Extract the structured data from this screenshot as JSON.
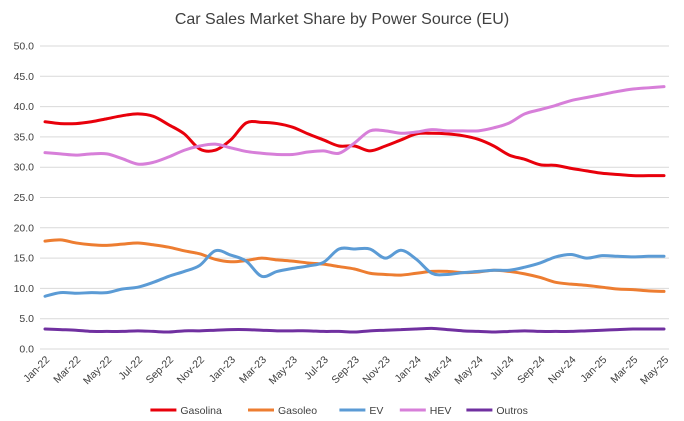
{
  "chart_data": {
    "type": "line",
    "title": "Car Sales Market Share by Power Source (EU)",
    "xlabel": "",
    "ylabel": "",
    "ylim": [
      0,
      50
    ],
    "yticks": [
      "0.0",
      "5.0",
      "10.0",
      "15.0",
      "20.0",
      "25.0",
      "30.0",
      "35.0",
      "40.0",
      "45.0",
      "50.0"
    ],
    "grid": true,
    "legend_position": "bottom",
    "categories": [
      "Jan-22",
      "Feb-22",
      "Mar-22",
      "Apr-22",
      "May-22",
      "Jun-22",
      "Jul-22",
      "Aug-22",
      "Sep-22",
      "Oct-22",
      "Nov-22",
      "Dec-22",
      "Jan-23",
      "Feb-23",
      "Mar-23",
      "Apr-23",
      "May-23",
      "Jun-23",
      "Jul-23",
      "Aug-23",
      "Sep-23",
      "Oct-23",
      "Nov-23",
      "Dec-23",
      "Jan-24",
      "Feb-24",
      "Mar-24",
      "Apr-24",
      "May-24",
      "Jun-24",
      "Jul-24",
      "Aug-24",
      "Sep-24",
      "Oct-24",
      "Nov-24",
      "Dec-24",
      "Jan-25",
      "Feb-25",
      "Mar-25",
      "Apr-25",
      "May-25"
    ],
    "xtick_labels": [
      "Jan-22",
      "Mar-22",
      "May-22",
      "Jul-22",
      "Sep-22",
      "Nov-22",
      "Jan-23",
      "Mar-23",
      "May-23",
      "Jul-23",
      "Sep-23",
      "Nov-23",
      "Jan-24",
      "Mar-24",
      "May-24",
      "Jul-24",
      "Sep-24",
      "Nov-24",
      "Jan-25",
      "Mar-25",
      "May-25"
    ],
    "series": [
      {
        "name": "Gasolina",
        "color": "#e8000b",
        "values": [
          37.5,
          37.2,
          37.2,
          37.5,
          38.0,
          38.5,
          38.8,
          38.4,
          37.0,
          35.5,
          33.0,
          32.8,
          34.5,
          37.3,
          37.4,
          37.2,
          36.6,
          35.5,
          34.5,
          33.5,
          33.5,
          32.7,
          33.5,
          34.5,
          35.5,
          35.6,
          35.5,
          35.2,
          34.6,
          33.5,
          32.0,
          31.3,
          30.4,
          30.3,
          29.8,
          29.4,
          29.0,
          28.8,
          28.6,
          28.6,
          28.6
        ]
      },
      {
        "name": "Gasoleo",
        "color": "#ed7d31",
        "values": [
          17.8,
          18.0,
          17.5,
          17.2,
          17.1,
          17.3,
          17.5,
          17.2,
          16.8,
          16.2,
          15.7,
          14.8,
          14.4,
          14.6,
          15.0,
          14.7,
          14.5,
          14.2,
          14.0,
          13.6,
          13.2,
          12.5,
          12.3,
          12.2,
          12.5,
          12.8,
          12.8,
          12.6,
          12.7,
          13.0,
          12.8,
          12.4,
          11.8,
          11.0,
          10.7,
          10.5,
          10.2,
          9.9,
          9.8,
          9.6,
          9.5
        ]
      },
      {
        "name": "EV",
        "color": "#5b9bd5",
        "values": [
          8.7,
          9.3,
          9.2,
          9.3,
          9.3,
          9.9,
          10.2,
          11.0,
          12.0,
          12.8,
          13.8,
          16.2,
          15.5,
          14.5,
          12.0,
          12.8,
          13.3,
          13.7,
          14.3,
          16.5,
          16.5,
          16.5,
          15.0,
          16.3,
          14.8,
          12.5,
          12.3,
          12.6,
          12.8,
          13.0,
          13.0,
          13.5,
          14.2,
          15.2,
          15.6,
          15.0,
          15.4,
          15.3,
          15.2,
          15.3,
          15.3
        ]
      },
      {
        "name": "HEV",
        "color": "#d77fd9",
        "values": [
          32.4,
          32.2,
          32.0,
          32.2,
          32.2,
          31.4,
          30.5,
          30.8,
          31.7,
          32.8,
          33.5,
          33.8,
          33.2,
          32.6,
          32.3,
          32.1,
          32.1,
          32.5,
          32.7,
          32.3,
          34.0,
          36.0,
          36.0,
          35.6,
          35.8,
          36.2,
          36.0,
          36.0,
          36.0,
          36.5,
          37.3,
          38.8,
          39.5,
          40.2,
          41.0,
          41.5,
          42.0,
          42.5,
          42.9,
          43.1,
          43.3
        ]
      },
      {
        "name": "Outros",
        "color": "#7030a0",
        "values": [
          3.3,
          3.2,
          3.1,
          2.9,
          2.9,
          2.9,
          3.0,
          2.9,
          2.8,
          3.0,
          3.0,
          3.1,
          3.2,
          3.2,
          3.1,
          3.0,
          3.0,
          3.0,
          2.9,
          2.9,
          2.8,
          3.0,
          3.1,
          3.2,
          3.3,
          3.4,
          3.2,
          3.0,
          2.9,
          2.8,
          2.9,
          3.0,
          2.9,
          2.9,
          2.9,
          3.0,
          3.1,
          3.2,
          3.3,
          3.3,
          3.3
        ]
      }
    ]
  }
}
